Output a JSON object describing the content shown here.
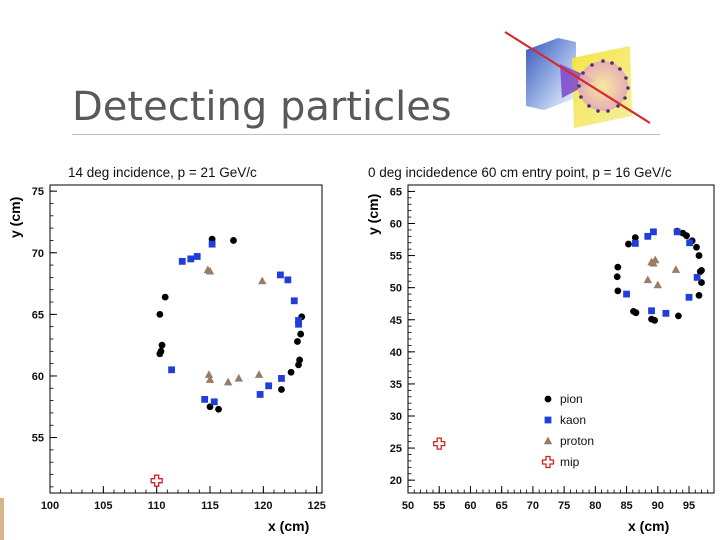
{
  "slide": {
    "title": "Detecting particles"
  },
  "colors": {
    "pion": "#000000",
    "kaon": "#1f3fd8",
    "proton": "#9a7b66",
    "mip": "#d42020"
  },
  "chart_data": [
    {
      "type": "scatter",
      "title": "14 deg incidence,  p = 21 GeV/c",
      "xlabel": "x (cm)",
      "ylabel": "y (cm)",
      "xlim": [
        100,
        125.5
      ],
      "ylim": [
        50.5,
        75.5
      ],
      "xticks": [
        100,
        105,
        110,
        115,
        120,
        125
      ],
      "yticks": [
        55,
        60,
        65,
        70,
        75
      ],
      "series": [
        {
          "name": "pion",
          "marker": "circle",
          "points": [
            [
              115.2,
              71.1
            ],
            [
              117.2,
              71.0
            ],
            [
              110.8,
              66.4
            ],
            [
              110.3,
              65.0
            ],
            [
              110.5,
              62.5
            ],
            [
              110.4,
              62.0
            ],
            [
              110.3,
              61.8
            ],
            [
              123.6,
              64.8
            ],
            [
              123.5,
              63.4
            ],
            [
              123.2,
              62.8
            ],
            [
              123.4,
              61.3
            ],
            [
              123.3,
              60.9
            ],
            [
              122.6,
              60.3
            ],
            [
              121.7,
              58.9
            ],
            [
              115.0,
              57.5
            ],
            [
              115.8,
              57.3
            ]
          ]
        },
        {
          "name": "kaon",
          "marker": "square",
          "points": [
            [
              112.4,
              69.3
            ],
            [
              113.2,
              69.5
            ],
            [
              113.8,
              69.7
            ],
            [
              115.2,
              70.7
            ],
            [
              121.6,
              68.2
            ],
            [
              122.3,
              67.8
            ],
            [
              122.9,
              66.1
            ],
            [
              123.3,
              64.5
            ],
            [
              123.3,
              64.2
            ],
            [
              111.4,
              60.5
            ],
            [
              121.7,
              59.8
            ],
            [
              120.5,
              59.2
            ],
            [
              119.7,
              58.5
            ],
            [
              114.5,
              58.1
            ],
            [
              115.4,
              57.9
            ]
          ]
        },
        {
          "name": "proton",
          "marker": "triangle",
          "points": [
            [
              114.8,
              68.6
            ],
            [
              115.0,
              68.5
            ],
            [
              119.9,
              67.7
            ],
            [
              114.9,
              60.1
            ],
            [
              115.0,
              59.7
            ],
            [
              117.7,
              59.8
            ],
            [
              116.7,
              59.5
            ],
            [
              119.6,
              60.1
            ]
          ]
        },
        {
          "name": "mip",
          "marker": "cross",
          "points": [
            [
              110.0,
              51.5
            ]
          ]
        }
      ]
    },
    {
      "type": "scatter",
      "title": "0 deg incidedence 60 cm entry point, p = 16 GeV/c",
      "xlabel": "x (cm)",
      "ylabel": "y (cm)",
      "xlim": [
        50,
        99
      ],
      "ylim": [
        18,
        66
      ],
      "xticks": [
        50,
        55,
        60,
        65,
        70,
        75,
        80,
        85,
        90,
        95
      ],
      "yticks": [
        20,
        25,
        30,
        35,
        40,
        45,
        50,
        55,
        60,
        65
      ],
      "legend": {
        "position": "lower-right",
        "entries": [
          "pion",
          "kaon",
          "proton",
          "mip"
        ]
      },
      "series": [
        {
          "name": "pion",
          "marker": "circle",
          "points": [
            [
              93.1,
              58.8
            ],
            [
              94.0,
              58.5
            ],
            [
              94.6,
              58.1
            ],
            [
              95.5,
              57.3
            ],
            [
              96.2,
              56.3
            ],
            [
              96.6,
              55.0
            ],
            [
              97.0,
              52.7
            ],
            [
              96.8,
              52.5
            ],
            [
              97.0,
              50.8
            ],
            [
              96.6,
              48.8
            ],
            [
              85.3,
              56.8
            ],
            [
              86.4,
              57.8
            ],
            [
              83.6,
              53.2
            ],
            [
              83.5,
              51.7
            ],
            [
              83.6,
              49.5
            ],
            [
              86.1,
              46.3
            ],
            [
              86.5,
              46.1
            ],
            [
              89.0,
              45.1
            ],
            [
              89.5,
              44.9
            ],
            [
              93.3,
              45.6
            ]
          ]
        },
        {
          "name": "kaon",
          "marker": "square",
          "points": [
            [
              88.4,
              58.0
            ],
            [
              89.3,
              58.7
            ],
            [
              93.1,
              58.7
            ],
            [
              86.4,
              56.9
            ],
            [
              95.1,
              57.0
            ],
            [
              96.3,
              51.6
            ],
            [
              85.0,
              49.0
            ],
            [
              89.0,
              46.4
            ],
            [
              91.3,
              46.0
            ],
            [
              95.0,
              48.5
            ]
          ]
        },
        {
          "name": "proton",
          "marker": "triangle",
          "points": [
            [
              89.0,
              54.0
            ],
            [
              89.6,
              54.3
            ],
            [
              89.3,
              53.8
            ],
            [
              92.9,
              52.8
            ],
            [
              88.4,
              51.2
            ],
            [
              90.0,
              50.4
            ]
          ]
        },
        {
          "name": "mip",
          "marker": "cross",
          "points": [
            [
              55.0,
              25.7
            ]
          ]
        }
      ]
    }
  ]
}
